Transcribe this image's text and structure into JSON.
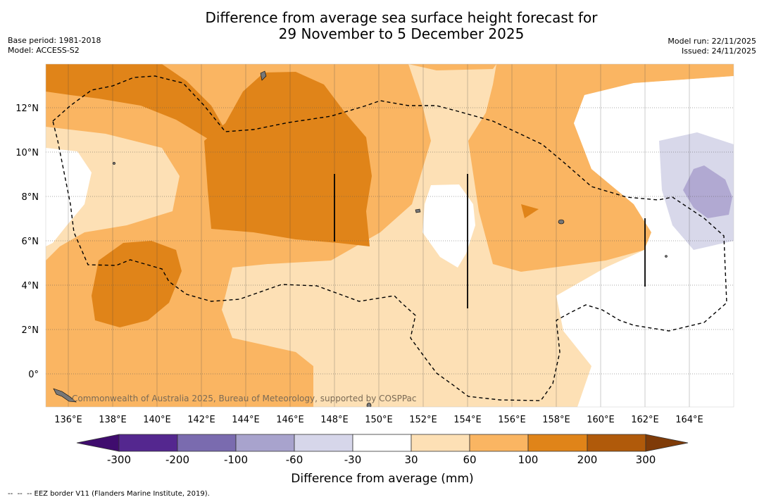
{
  "title": {
    "line1": "Difference from average sea surface height forecast for",
    "line2": "29 November to 5 December 2025"
  },
  "meta_left": {
    "base_period": "Base period: 1981-2018",
    "model": "Model: ACCESS-S2"
  },
  "meta_right": {
    "model_run": "Model run: 22/11/2025",
    "issued": "Issued: 24/11/2025"
  },
  "map": {
    "lon_ticks": [
      "136°E",
      "138°E",
      "140°E",
      "142°E",
      "144°E",
      "146°E",
      "148°E",
      "150°E",
      "152°E",
      "154°E",
      "156°E",
      "158°E",
      "160°E",
      "162°E",
      "164°E"
    ],
    "lat_ticks": [
      "12°N",
      "10°N",
      "8°N",
      "6°N",
      "4°N",
      "2°N",
      "0°"
    ],
    "copyright": "Commonwealth of Australia 2025, Bureau of Meteorology, supported by COSPPac",
    "colors": {
      "pos_30_60": "#fde0b5",
      "pos_60_100": "#fab562",
      "pos_100_200": "#e08419",
      "neg_30_60": "#d8d8ea",
      "neg_60_100": "#b1a9d2",
      "land": "#777777"
    }
  },
  "colorbar": {
    "title": "Difference from average (mm)",
    "labels": [
      "-300",
      "-200",
      "-100",
      "-60",
      "-30",
      "30",
      "60",
      "100",
      "200",
      "300"
    ],
    "colors": [
      "#3f0c6e",
      "#54278f",
      "#7a6baf",
      "#a8a3cd",
      "#d6d6ea",
      "#ffffff",
      "#fde0b5",
      "#fab562",
      "#e08419",
      "#b05a0a",
      "#7f3b08"
    ]
  },
  "footnote": "--  --  -- EEZ border V11 (Flanders Marine Institute, 2019)."
}
